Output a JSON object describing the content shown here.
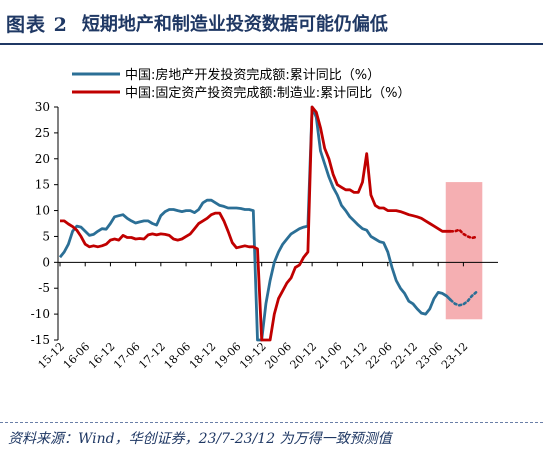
{
  "header": {
    "fig_label": "图表 2",
    "title": "短期地产和制造业投资数据可能仍偏低"
  },
  "source": "资料来源：Wind，华创证券，23/7-23/12 为万得一致预测值",
  "colors": {
    "title": "#1f3864",
    "series_realestate": "#2b6f96",
    "series_manufacturing": "#c00000",
    "forecast_band": "#f4a6aa"
  },
  "chart_data": {
    "type": "line",
    "xlabel": "",
    "ylabel": "",
    "ylim": [
      -15,
      30
    ],
    "yticks": [
      -15,
      -10,
      -5,
      0,
      5,
      10,
      15,
      20,
      25,
      30
    ],
    "x_tick_labels": [
      "15-12",
      "16-06",
      "16-12",
      "17-06",
      "17-12",
      "18-06",
      "18-12",
      "19-06",
      "19-12",
      "20-06",
      "20-12",
      "21-06",
      "21-12",
      "22-06",
      "22-12",
      "23-06",
      "23-12"
    ],
    "x_start": "2015-12",
    "grid": false,
    "legend": "top-left",
    "forecast_period": [
      "2023-07",
      "2023-12"
    ],
    "series": [
      {
        "name": "中国:房地产开发投资完成额:累计同比（%）",
        "color": "#2b6f96",
        "values": [
          1,
          2,
          3.5,
          6,
          7,
          6.8,
          6,
          5.2,
          5.4,
          6,
          6.5,
          6.4,
          7.5,
          8.8,
          9,
          9.2,
          8.5,
          8,
          7.6,
          7.8,
          8,
          8,
          7.5,
          7.2,
          9,
          9.8,
          10.2,
          10.2,
          10,
          9.8,
          10,
          10,
          9.6,
          10.2,
          11.5,
          12,
          12,
          11.5,
          11,
          10.8,
          10.5,
          10.5,
          10.5,
          10.4,
          10.2,
          10.2,
          10,
          -15,
          -15,
          -8,
          -3.5,
          0,
          2,
          3.5,
          4.5,
          5.5,
          6,
          6.5,
          6.8,
          7,
          30,
          28,
          21.5,
          19,
          16.5,
          14.5,
          13,
          11,
          10,
          8.8,
          8,
          7.2,
          6.5,
          6.2,
          5,
          4.5,
          4,
          3.8,
          2,
          -1,
          -3.5,
          -5,
          -6,
          -7.5,
          -8,
          -9,
          -9.8,
          -10,
          -9,
          -7,
          -5.8,
          -6,
          -6.5,
          -7.3
        ],
        "forecast": [
          -7.3,
          -8.0,
          -8.3,
          -8.1,
          -7.5,
          -6.5,
          -5.8
        ]
      },
      {
        "name": "中国:固定资产投资完成额:制造业:累计同比（%）",
        "color": "#c00000",
        "values": [
          8,
          8,
          7.4,
          6.9,
          6.2,
          5,
          3.5,
          3,
          3.2,
          3,
          3.2,
          3.5,
          4.3,
          4.5,
          4.3,
          5.2,
          4.8,
          4.8,
          4.5,
          4.6,
          4.5,
          5.3,
          5.5,
          5.3,
          5.5,
          5.4,
          5.2,
          4.5,
          4.3,
          4.5,
          5,
          5.5,
          6.5,
          7.5,
          8,
          8.5,
          9.2,
          9.5,
          9.5,
          8,
          6,
          3.8,
          2.8,
          3,
          3.2,
          3,
          3,
          2.6,
          -31.5,
          -26,
          -15,
          -10,
          -7,
          -5.5,
          -4,
          -3,
          -1,
          -0.5,
          1,
          2,
          30,
          29,
          26,
          22,
          20,
          17,
          15,
          14.5,
          14,
          14,
          13.5,
          13.5,
          15.5,
          21,
          13,
          11,
          10.5,
          10.5,
          10,
          10,
          10,
          9.8,
          9.5,
          9.2,
          9,
          8.8,
          8.5,
          8,
          7.5,
          7,
          6.5,
          6,
          6,
          6
        ],
        "forecast": [
          6.0,
          6.0,
          6.3,
          5.5,
          5.0,
          4.7,
          4.9
        ]
      }
    ]
  }
}
